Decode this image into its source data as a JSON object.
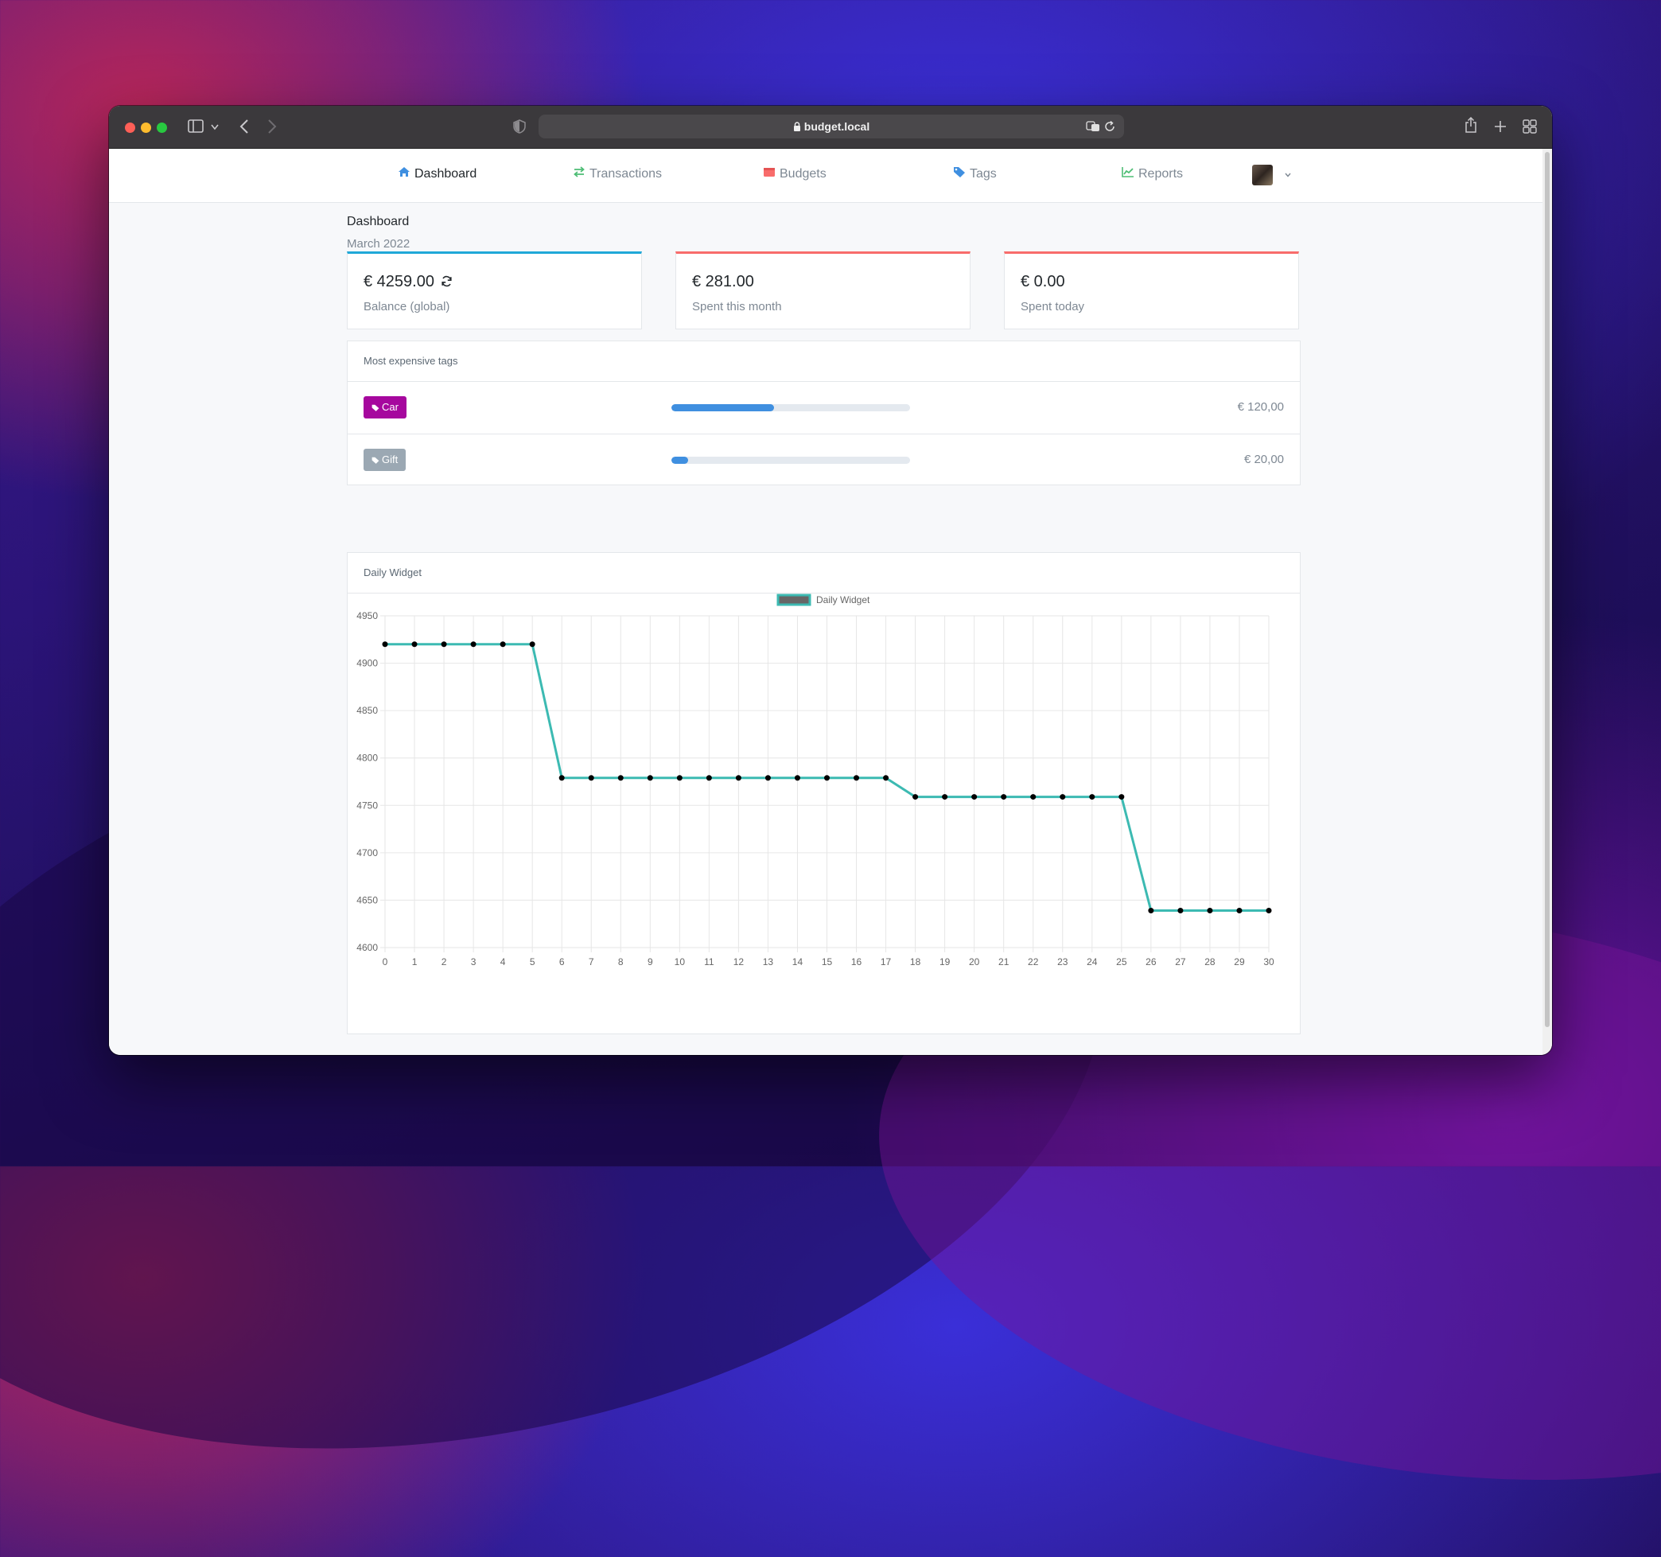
{
  "browser": {
    "url": "budget.local",
    "colors": {
      "close": "#ff5f57",
      "minimize": "#febc2e",
      "zoom": "#28c840"
    }
  },
  "nav": {
    "items": [
      {
        "label": "Dashboard",
        "icon": "home-icon",
        "active": true,
        "color": "#3f8fe0"
      },
      {
        "label": "Transactions",
        "icon": "arrows-exchange-icon",
        "active": false,
        "color": "#4dbd74"
      },
      {
        "label": "Budgets",
        "icon": "wallet-icon",
        "active": false,
        "color": "#f86c6b"
      },
      {
        "label": "Tags",
        "icon": "tag-icon",
        "active": false,
        "color": "#3f8fe0"
      },
      {
        "label": "Reports",
        "icon": "line-chart-icon",
        "active": false,
        "color": "#4dbd74"
      }
    ]
  },
  "header": {
    "title": "Dashboard",
    "subtitle": "March 2022"
  },
  "stats": [
    {
      "value": "€ 4259.00",
      "label": "Balance (global)",
      "accent": "#20a8d8",
      "has_refresh": true
    },
    {
      "value": "€ 281.00",
      "label": "Spent this month",
      "accent": "#f86c6b"
    },
    {
      "value": "€ 0.00",
      "label": "Spent today",
      "accent": "#f86c6b"
    }
  ],
  "tags_panel": {
    "title": "Most expensive tags",
    "rows": [
      {
        "name": "Car",
        "amount": "€ 120,00",
        "progress": 0.43,
        "color": "#a6089e"
      },
      {
        "name": "Gift",
        "amount": "€ 20,00",
        "progress": 0.07,
        "color": "#9ba8b3"
      }
    ]
  },
  "daily_panel": {
    "title": "Daily Widget"
  },
  "chart_data": {
    "type": "line",
    "title": "",
    "xlabel": "",
    "ylabel": "",
    "legend": "top-center",
    "grid": true,
    "ylim": [
      4600,
      4950
    ],
    "yticks": [
      4600,
      4650,
      4700,
      4750,
      4800,
      4850,
      4900,
      4950
    ],
    "x": [
      0,
      1,
      2,
      3,
      4,
      5,
      6,
      7,
      8,
      9,
      10,
      11,
      12,
      13,
      14,
      15,
      16,
      17,
      18,
      19,
      20,
      21,
      22,
      23,
      24,
      25,
      26,
      27,
      28,
      29,
      30
    ],
    "series": [
      {
        "name": "Daily Widget",
        "color": "#3cbab2",
        "values": [
          4920,
          4920,
          4920,
          4920,
          4920,
          4920,
          4779,
          4779,
          4779,
          4779,
          4779,
          4779,
          4779,
          4779,
          4779,
          4779,
          4779,
          4779,
          4759,
          4759,
          4759,
          4759,
          4759,
          4759,
          4759,
          4759,
          4639,
          4639,
          4639,
          4639,
          4639
        ]
      }
    ]
  }
}
